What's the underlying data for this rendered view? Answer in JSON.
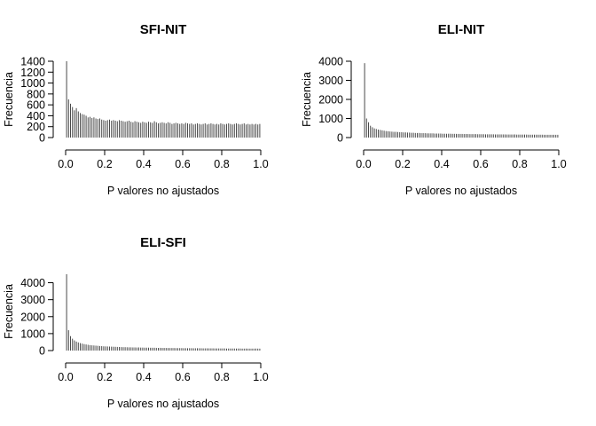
{
  "chart_data": [
    {
      "type": "bar",
      "title": "SFI-NIT",
      "xlabel": "P valores no ajustados",
      "ylabel": "Frecuencia",
      "xlim": [
        0,
        1
      ],
      "ylim": [
        0,
        1400
      ],
      "xticks": [
        "0.0",
        "0.2",
        "0.4",
        "0.6",
        "0.8",
        "1.0"
      ],
      "yticks": [
        "0",
        "200",
        "400",
        "600",
        "800",
        "1000",
        "1200",
        "1400"
      ],
      "bin_width": 0.01,
      "values": [
        1400,
        700,
        620,
        560,
        500,
        540,
        480,
        450,
        430,
        420,
        400,
        370,
        380,
        360,
        370,
        350,
        340,
        350,
        330,
        320,
        310,
        320,
        330,
        310,
        320,
        310,
        300,
        320,
        310,
        300,
        290,
        300,
        310,
        290,
        280,
        300,
        290,
        280,
        270,
        290,
        280,
        270,
        290,
        280,
        270,
        300,
        280,
        260,
        270,
        280,
        270,
        260,
        280,
        270,
        250,
        260,
        270,
        260,
        250,
        260,
        250,
        270,
        260,
        250,
        260,
        240,
        250,
        260,
        250,
        240,
        250,
        260,
        240,
        250,
        260,
        250,
        240,
        250,
        240,
        260,
        250,
        240,
        250,
        260,
        250,
        240,
        250,
        260,
        250,
        240,
        250,
        260,
        240,
        250,
        240,
        250,
        240,
        250,
        240,
        250
      ]
    },
    {
      "type": "bar",
      "title": "ELI-NIT",
      "xlabel": "P valores no ajustados",
      "ylabel": "Frecuencia",
      "xlim": [
        0,
        1
      ],
      "ylim": [
        0,
        4000
      ],
      "xticks": [
        "0.0",
        "0.2",
        "0.4",
        "0.6",
        "0.8",
        "1.0"
      ],
      "yticks": [
        "0",
        "1000",
        "2000",
        "3000",
        "4000"
      ],
      "bin_width": 0.01,
      "values": [
        3900,
        1000,
        800,
        620,
        540,
        480,
        450,
        420,
        400,
        380,
        360,
        340,
        330,
        320,
        310,
        300,
        300,
        290,
        280,
        280,
        270,
        270,
        260,
        260,
        250,
        250,
        240,
        240,
        240,
        230,
        230,
        230,
        220,
        220,
        220,
        220,
        210,
        210,
        210,
        210,
        200,
        200,
        200,
        200,
        200,
        195,
        195,
        190,
        190,
        190,
        190,
        185,
        185,
        185,
        180,
        180,
        180,
        180,
        175,
        175,
        175,
        175,
        170,
        170,
        170,
        170,
        170,
        165,
        165,
        165,
        165,
        165,
        160,
        160,
        160,
        160,
        160,
        160,
        155,
        155,
        155,
        155,
        155,
        155,
        150,
        150,
        150,
        150,
        150,
        150,
        150,
        150,
        145,
        145,
        145,
        145,
        145,
        145,
        145,
        145
      ]
    },
    {
      "type": "bar",
      "title": "ELI-SFI",
      "xlabel": "P valores no ajustados",
      "ylabel": "Frecuencia",
      "xlim": [
        0,
        1
      ],
      "ylim": [
        0,
        4500
      ],
      "xticks": [
        "0.0",
        "0.2",
        "0.4",
        "0.6",
        "0.8",
        "1.0"
      ],
      "yticks": [
        "0",
        "1000",
        "2000",
        "3000",
        "4000"
      ],
      "bin_width": 0.01,
      "values": [
        4500,
        1200,
        850,
        700,
        600,
        530,
        480,
        440,
        410,
        380,
        360,
        340,
        320,
        310,
        300,
        290,
        280,
        270,
        260,
        250,
        245,
        240,
        235,
        230,
        225,
        220,
        215,
        210,
        205,
        200,
        200,
        195,
        190,
        190,
        185,
        185,
        180,
        180,
        175,
        175,
        170,
        170,
        170,
        165,
        165,
        165,
        160,
        160,
        160,
        155,
        155,
        155,
        150,
        150,
        150,
        150,
        145,
        145,
        145,
        145,
        140,
        140,
        140,
        140,
        140,
        135,
        135,
        135,
        135,
        135,
        130,
        130,
        130,
        130,
        130,
        130,
        125,
        125,
        125,
        125,
        125,
        125,
        120,
        120,
        120,
        120,
        120,
        120,
        120,
        120,
        115,
        115,
        115,
        115,
        115,
        115,
        115,
        115,
        115,
        115
      ]
    }
  ]
}
